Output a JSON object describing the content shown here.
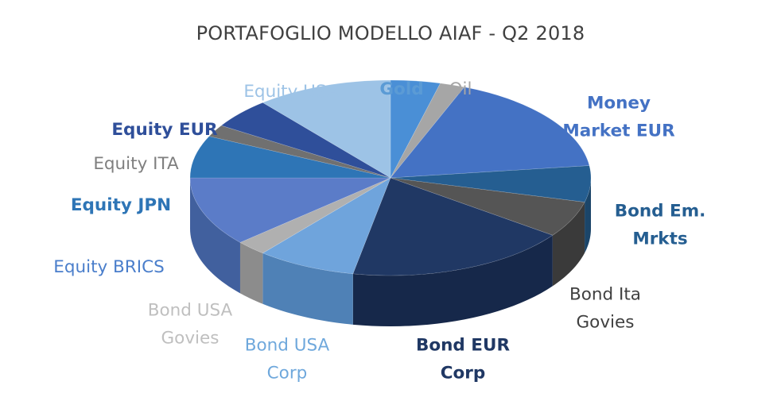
{
  "chart_data": {
    "type": "pie",
    "title": "PORTAFOGLIO MODELLO AIAF - Q2 2018",
    "slices": [
      {
        "label": [
          "Gold"
        ],
        "value": 4.0,
        "color": "#4a8fd6",
        "side": "#356da8",
        "label_color": "#5b9bd5",
        "bold": true
      },
      {
        "label": [
          "Oil"
        ],
        "value": 2.0,
        "color": "#a6a6a6",
        "side": "#7f7f7f",
        "label_color": "#a6a6a6",
        "bold": false
      },
      {
        "label": [
          "Money",
          "Market EUR"
        ],
        "value": 17.0,
        "color": "#4472c4",
        "side": "#2f5597",
        "label_color": "#4472c4",
        "bold": true
      },
      {
        "label": [
          "Bond Em.",
          "Mrkts"
        ],
        "value": 6.0,
        "color": "#255e91",
        "side": "#1b4569",
        "label_color": "#255e91",
        "bold": true
      },
      {
        "label": [
          "Bond Ita",
          "Govies"
        ],
        "value": 6.0,
        "color": "#555555",
        "side": "#3a3a3a",
        "label_color": "#404040",
        "bold": false
      },
      {
        "label": [
          "Bond EUR",
          "Corp"
        ],
        "value": 18.0,
        "color": "#203864",
        "side": "#16284a",
        "label_color": "#203864",
        "bold": true
      },
      {
        "label": [
          "Bond USA",
          "Corp"
        ],
        "value": 8.0,
        "color": "#6fa4dc",
        "side": "#4f81b6",
        "label_color": "#6fa8dc",
        "bold": false
      },
      {
        "label": [
          "Bond USA",
          "Govies"
        ],
        "value": 2.5,
        "color": "#b0b0b0",
        "side": "#8c8c8c",
        "label_color": "#bfbfbf",
        "bold": false
      },
      {
        "label": [
          "Equity BRICS"
        ],
        "value": 11.5,
        "color": "#5b7cc8",
        "side": "#41609e",
        "label_color": "#4a7ecb",
        "bold": false
      },
      {
        "label": [
          "Equity JPN"
        ],
        "value": 7.0,
        "color": "#2e75b6",
        "side": "#20598c",
        "label_color": "#2e75b6",
        "bold": true
      },
      {
        "label": [
          "Equity ITA"
        ],
        "value": 2.0,
        "color": "#707070",
        "side": "#555555",
        "label_color": "#7f7f7f",
        "bold": false
      },
      {
        "label": [
          "Equity EUR"
        ],
        "value": 5.0,
        "color": "#2f4f9a",
        "side": "#223a73",
        "label_color": "#2f4f9a",
        "bold": true
      },
      {
        "label": [
          "Equity USA"
        ],
        "value": 11.0,
        "color": "#9dc3e6",
        "side": "#7aa2c8",
        "label_color": "#9dc3e6",
        "bold": false
      }
    ]
  }
}
